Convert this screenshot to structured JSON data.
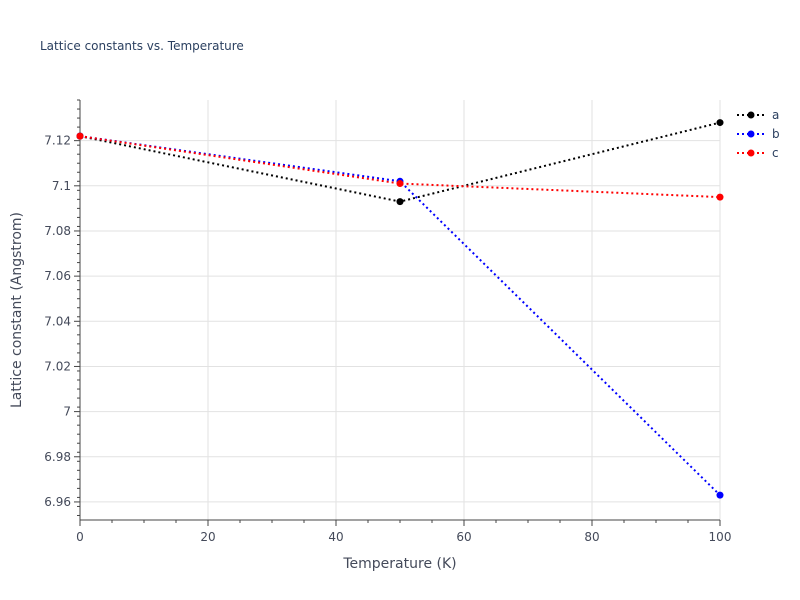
{
  "chart_data": {
    "type": "line",
    "title": "Lattice constants vs. Temperature",
    "xlabel": "Temperature (K)",
    "ylabel": "Lattice constant (Angstrom)",
    "xlim": [
      0,
      100
    ],
    "ylim": [
      6.952,
      7.138
    ],
    "x_ticks": [
      0,
      20,
      40,
      60,
      80,
      100
    ],
    "x_tick_labels": [
      "0",
      "20",
      "40",
      "60",
      "80",
      "100"
    ],
    "y_ticks": [
      6.96,
      6.98,
      7.0,
      7.02,
      7.04,
      7.06,
      7.08,
      7.1,
      7.12
    ],
    "y_tick_labels": [
      "6.96",
      "6.98",
      "7",
      "7.02",
      "7.04",
      "7.06",
      "7.08",
      "7.1",
      "7.12"
    ],
    "grid": true,
    "legend_position": "top-right",
    "line_style": "dotted",
    "markers": true,
    "series": [
      {
        "name": "a",
        "color": "#000000",
        "x": [
          0,
          50,
          100
        ],
        "y": [
          7.122,
          7.093,
          7.128
        ]
      },
      {
        "name": "b",
        "color": "#0000ff",
        "x": [
          0,
          50,
          100
        ],
        "y": [
          7.122,
          7.102,
          6.963
        ]
      },
      {
        "name": "c",
        "color": "#ff0000",
        "x": [
          0,
          50,
          100
        ],
        "y": [
          7.122,
          7.101,
          7.095
        ]
      }
    ]
  }
}
